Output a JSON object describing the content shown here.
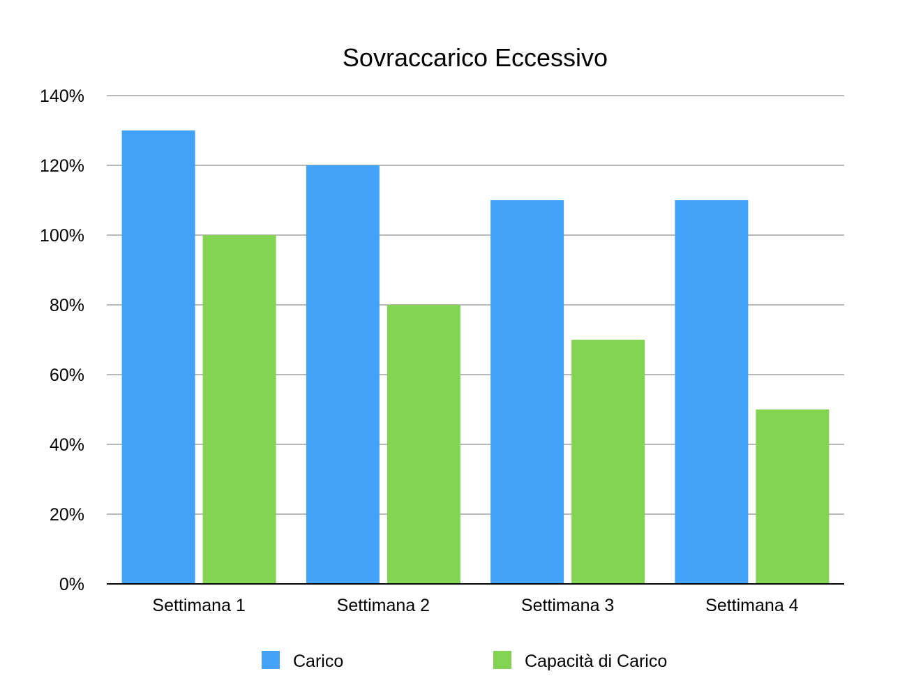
{
  "chart_data": {
    "type": "bar",
    "title": "Sovraccarico Eccessivo",
    "xlabel": "",
    "ylabel": "",
    "categories": [
      "Settimana 1",
      "Settimana 2",
      "Settimana 3",
      "Settimana 4"
    ],
    "series": [
      {
        "name": "Carico",
        "color": "#42a2f7",
        "values": [
          130,
          120,
          110,
          110
        ]
      },
      {
        "name": "Capacità di Carico",
        "color": "#83d453",
        "values": [
          100,
          80,
          70,
          50
        ]
      }
    ],
    "ylim": [
      0,
      140
    ],
    "yticks": [
      0,
      20,
      40,
      60,
      80,
      100,
      120,
      140
    ],
    "ytick_labels": [
      "0%",
      "20%",
      "40%",
      "60%",
      "80%",
      "100%",
      "120%",
      "140%"
    ],
    "grid": true,
    "legend_position": "bottom"
  }
}
